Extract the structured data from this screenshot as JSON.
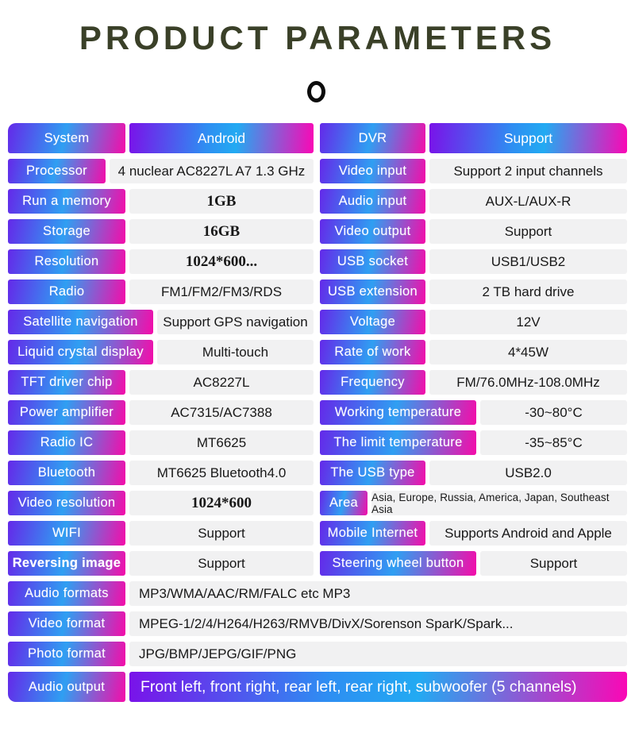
{
  "header": {
    "title": "PRODUCT PARAMETERS"
  },
  "colors": {
    "gradient_start": "#6429e9",
    "gradient_mid": "#2f9ff2",
    "gradient_end": "#f50ca9",
    "header_gradient_start": "#7a12e9",
    "header_gradient_end": "#fb07b5",
    "value_cell_bg": "#f1f1f2",
    "title_color": "#3a4028",
    "value_text": "#181818"
  },
  "table": {
    "left": [
      {
        "label": "System",
        "value": "Android",
        "header": true
      },
      {
        "label": "Processor",
        "value": "4 nuclear  AC8227L A7 1.3 GHz",
        "label_size": "short"
      },
      {
        "label": "Run a memory",
        "value": "1GB",
        "value_style": "serif"
      },
      {
        "label": "Storage",
        "value": "16GB",
        "value_style": "serif"
      },
      {
        "label": "Resolution",
        "value": "1024*600...",
        "value_style": "serif"
      },
      {
        "label": "Radio",
        "value": "FM1/FM2/FM3/RDS"
      },
      {
        "label": "Satellite navigation",
        "value": "Support GPS navigation",
        "label_size": "wide"
      },
      {
        "label": "Liquid crystal display",
        "value": "Multi-touch",
        "label_size": "wide"
      },
      {
        "label": "TFT driver chip",
        "value": "AC8227L"
      },
      {
        "label": "Power amplifier",
        "value": "AC7315/AC7388"
      },
      {
        "label": "Radio IC",
        "value": "MT6625"
      },
      {
        "label": "Bluetooth",
        "value": "MT6625 Bluetooth4.0"
      },
      {
        "label": "Video resolution",
        "value": "1024*600",
        "value_style": "serif"
      },
      {
        "label": "WIFI",
        "value": "Support"
      },
      {
        "label": "Reversing image",
        "value": "Support",
        "label_bold": true
      }
    ],
    "right": [
      {
        "label": "DVR",
        "value": "Support",
        "header": true
      },
      {
        "label": "Video input",
        "value": "Support 2 input channels"
      },
      {
        "label": "Audio input",
        "value": "AUX-L/AUX-R"
      },
      {
        "label": "Video output",
        "value": "Support"
      },
      {
        "label": "USB socket",
        "value": "USB1/USB2"
      },
      {
        "label": "USB extension",
        "value": "2 TB hard drive"
      },
      {
        "label": "Voltage",
        "value": "12V"
      },
      {
        "label": "Rate of work",
        "value": "4*45W"
      },
      {
        "label": "Frequency",
        "value": "FM/76.0MHz-108.0MHz"
      },
      {
        "label": "Working temperature",
        "value": "-30~80°C",
        "label_size": "wide"
      },
      {
        "label": "The limit temperature",
        "value": "-35~85°C",
        "label_size": "wide"
      },
      {
        "label": "The USB type",
        "value": "USB2.0"
      },
      {
        "label": "Area",
        "value": "Asia, Europe, Russia, America, Japan, Southeast Asia",
        "label_size": "narrow",
        "value_style": "small"
      },
      {
        "label": "Mobile Internet",
        "value": "Supports Android and Apple"
      },
      {
        "label": "Steering wheel button",
        "value": "Support",
        "label_size": "wide"
      }
    ],
    "full": [
      {
        "label": "Audio formats",
        "value": "MP3/WMA/AAC/RM/FALC etc MP3",
        "value_style": "left"
      },
      {
        "label": "Video format",
        "value": "MPEG-1/2/4/H264/H263/RMVB/DivX/Sorenson SparK/Spark...",
        "value_style": "left"
      },
      {
        "label": "Photo format",
        "value": "JPG/BMP/JEPG/GIF/PNG",
        "value_style": "left"
      },
      {
        "label": "Audio output",
        "value": "Front left, front right, rear left, rear right, subwoofer (5 channels)",
        "value_style": "gradient"
      }
    ]
  }
}
